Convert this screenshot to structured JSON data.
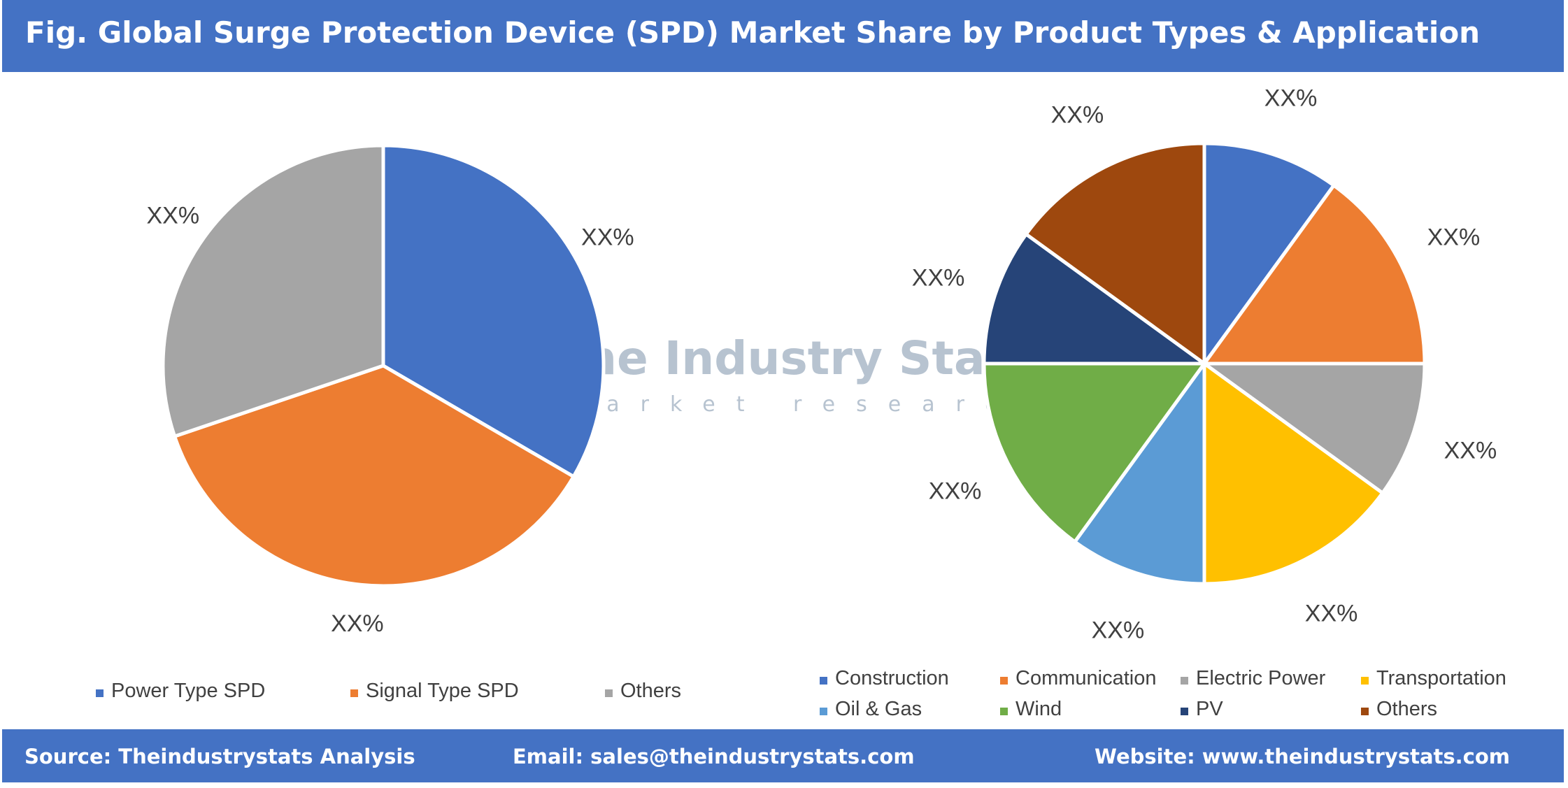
{
  "title": "Fig. Global Surge Protection Device (SPD) Market Share by Product Types & Application",
  "watermark": {
    "name": "The Industry Stats",
    "tagline": "market research"
  },
  "footer": {
    "source": "Source: Theindustrystats Analysis",
    "email": "Email: sales@theindustrystats.com",
    "website": "Website: www.theindustrystats.com"
  },
  "colors": {
    "brand": "#4472c4",
    "blue": "#4472c4",
    "orange": "#ed7d31",
    "gray": "#a5a5a5",
    "yellow": "#ffc000",
    "light_blue": "#5b9bd5",
    "green": "#70ad47",
    "navy": "#264478",
    "brown": "#9e480e"
  },
  "chart_data": [
    {
      "type": "pie",
      "title": "",
      "slices": [
        {
          "name": "Power Type SPD",
          "share": 33.4,
          "label": "XX%",
          "color": "#4472c4"
        },
        {
          "name": "Signal Type SPD",
          "share": 36.4,
          "label": "XX%",
          "color": "#ed7d31"
        },
        {
          "name": "Others",
          "share": 30.2,
          "label": "XX%",
          "color": "#a5a5a5"
        }
      ],
      "legend_position": "bottom"
    },
    {
      "type": "pie",
      "title": "",
      "slices": [
        {
          "name": "Construction",
          "share": 10,
          "label": "XX%",
          "color": "#4472c4"
        },
        {
          "name": "Communication",
          "share": 15,
          "label": "XX%",
          "color": "#ed7d31"
        },
        {
          "name": "Electric Power",
          "share": 10,
          "label": "XX%",
          "color": "#a5a5a5"
        },
        {
          "name": "Transportation",
          "share": 15,
          "label": "XX%",
          "color": "#ffc000"
        },
        {
          "name": "Oil & Gas",
          "share": 10,
          "label": "XX%",
          "color": "#5b9bd5"
        },
        {
          "name": "Wind",
          "share": 15,
          "label": "XX%",
          "color": "#70ad47"
        },
        {
          "name": "PV",
          "share": 10,
          "label": "XX%",
          "color": "#264478"
        },
        {
          "name": "Others",
          "share": 15,
          "label": "XX%",
          "color": "#9e480e"
        }
      ],
      "legend_position": "bottom"
    }
  ]
}
